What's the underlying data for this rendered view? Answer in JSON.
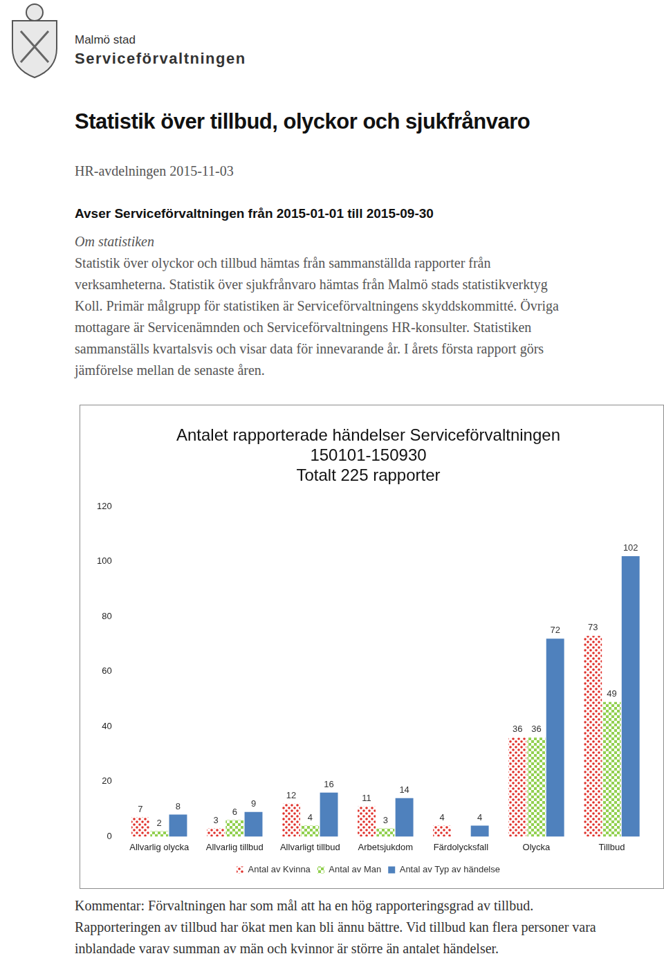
{
  "header": {
    "organization": "Malmö stad",
    "department": "Serviceförvaltningen"
  },
  "heading": "Statistik över tillbud, olyckor och sjukfrånvaro",
  "meta": "HR-avdelningen 2015-11-03",
  "subheading": "Avser Serviceförvaltningen från 2015-01-01 till 2015-09-30",
  "about": {
    "title": "Om statistiken",
    "text": "Statistik över olyckor och tillbud hämtas från sammanställda rapporter från verksamheterna. Statistik över sjukfrånvaro hämtas från Malmö stads statistikverktyg Koll. Primär målgrupp för statistiken är Serviceförvaltningens skyddskommitté. Övriga mottagare är Servicenämnden och Serviceförvaltningens HR-konsulter. Statistiken sammanställs kvartalsvis och visar data för innevarande år. I årets första rapport görs jämförelse mellan de senaste åren."
  },
  "chart_data": {
    "type": "bar",
    "title": [
      "Antalet rapporterade händelser Serviceförvaltningen",
      "150101-150930",
      "Totalt 225 rapporter"
    ],
    "categories": [
      "Allvarlig olycka",
      "Allvarlig tillbud",
      "Allvarligt tillbud",
      "Arbetsjukdom",
      "Färdolycksfall",
      "Olycka",
      "Tillbud"
    ],
    "series": [
      {
        "name": "Antal av Kvinna",
        "color": "#e0302a",
        "values": [
          7,
          3,
          12,
          11,
          4,
          36,
          73
        ]
      },
      {
        "name": "Antal av Man",
        "color": "#92d050",
        "values": [
          2,
          6,
          4,
          3,
          null,
          36,
          49
        ]
      },
      {
        "name": "Antal av Typ av händelse",
        "color": "#4f81bd",
        "values": [
          8,
          9,
          16,
          14,
          4,
          72,
          102
        ]
      }
    ],
    "ylim": [
      0,
      120
    ],
    "yticks": [
      0,
      20,
      40,
      60,
      80,
      100,
      120
    ],
    "grid": false,
    "legend": "bottom",
    "data_labels": true
  },
  "comment": "Kommentar: Förvaltningen har som mål att ha en hög rapporteringsgrad av tillbud. Rapporteringen av tillbud har ökat men kan bli ännu bättre. Vid tillbud kan flera personer vara inblandade varav summan av män och kvinnor är större än antalet händelser."
}
